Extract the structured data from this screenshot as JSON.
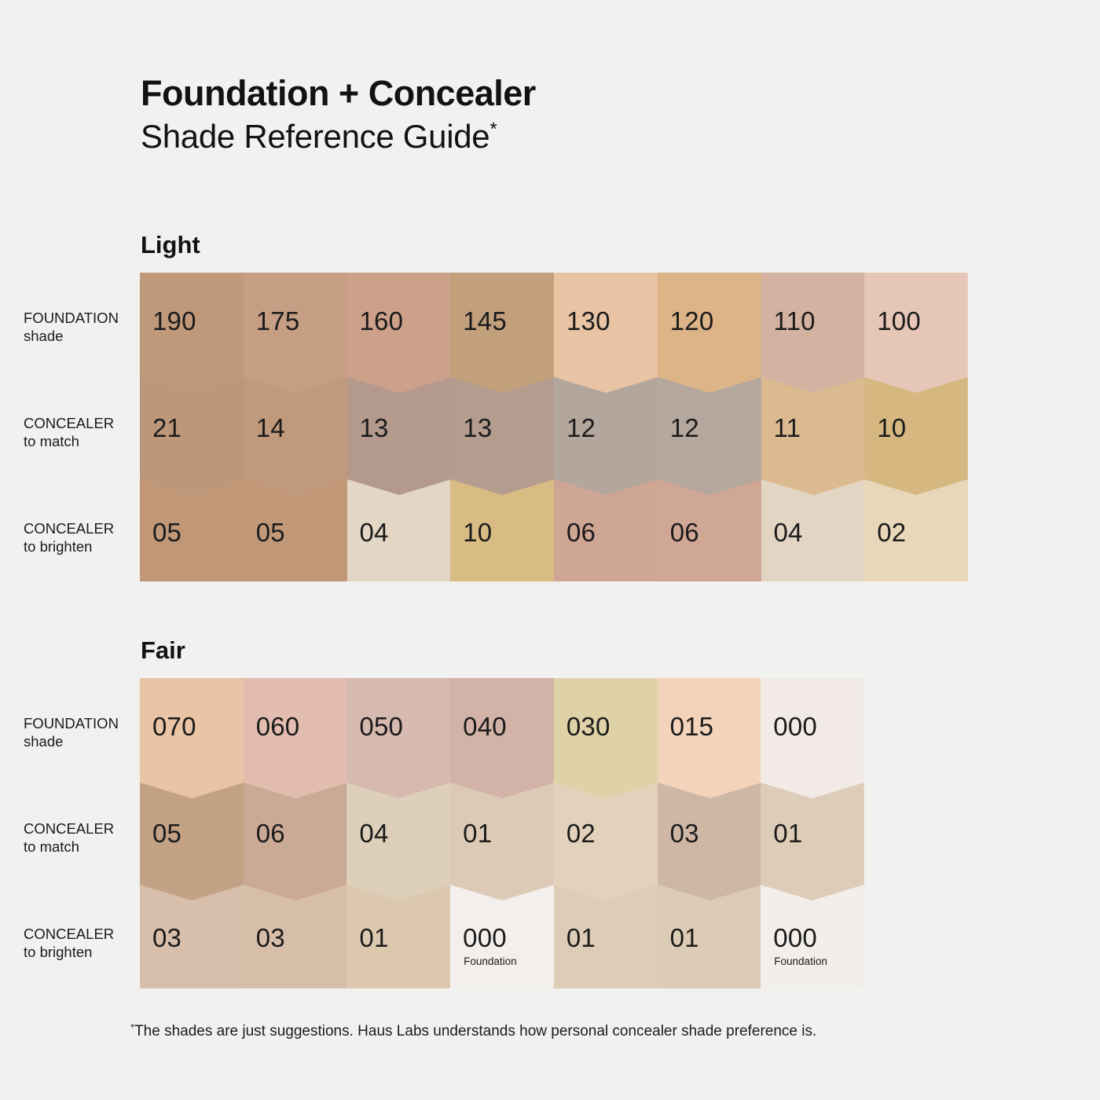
{
  "background": "#f1f1ef",
  "title": {
    "line1": "Foundation + Concealer",
    "line2": "Shade Reference Guide",
    "note_mark": "*"
  },
  "row_labels": [
    {
      "line1": "FOUNDATION",
      "line2": "shade"
    },
    {
      "line1": "CONCEALER",
      "line2": "to match"
    },
    {
      "line1": "CONCEALER",
      "line2": "to brighten"
    }
  ],
  "sections": [
    {
      "name": "Light",
      "columns": [
        {
          "foundation": {
            "label": "190",
            "color": "#c0987a"
          },
          "match": {
            "label": "21",
            "color": "#bd9779"
          },
          "brighten": {
            "label": "05",
            "color": "#c09878"
          }
        },
        {
          "foundation": {
            "label": "175",
            "color": "#c59e83"
          },
          "match": {
            "label": "14",
            "color": "#c19a7e"
          },
          "brighten": {
            "label": "05",
            "color": "#c19979"
          }
        },
        {
          "foundation": {
            "label": "160",
            "color": "#cda089"
          },
          "match": {
            "label": "13",
            "color": "#b39a8d"
          },
          "brighten": {
            "label": "04",
            "color": "#e4d6c4"
          }
        },
        {
          "foundation": {
            "label": "145",
            "color": "#c2a07c"
          },
          "match": {
            "label": "13",
            "color": "#b49c8f"
          },
          "brighten": {
            "label": "10",
            "color": "#d9bc83"
          }
        },
        {
          "foundation": {
            "label": "130",
            "color": "#e8c4a4"
          },
          "match": {
            "label": "12",
            "color": "#b3a69d"
          },
          "brighten": {
            "label": "06",
            "color": "#cfa593"
          }
        },
        {
          "foundation": {
            "label": "120",
            "color": "#dcb487"
          },
          "match": {
            "label": "12",
            "color": "#b4a79e"
          },
          "brighten": {
            "label": "06",
            "color": "#d0a694"
          }
        },
        {
          "foundation": {
            "label": "110",
            "color": "#d3b2a2"
          },
          "match": {
            "label": "11",
            "color": "#dcba8f"
          },
          "brighten": {
            "label": "04",
            "color": "#e3d5c3"
          }
        },
        {
          "foundation": {
            "label": "100",
            "color": "#e6c6b7"
          },
          "match": {
            "label": "10",
            "color": "#d6b780"
          },
          "brighten": {
            "label": "02",
            "color": "#e7d8ba"
          }
        }
      ]
    },
    {
      "name": "Fair",
      "columns": [
        {
          "foundation": {
            "label": "070",
            "color": "#eac5a5"
          },
          "match": {
            "label": "05",
            "color": "#c2a184"
          },
          "brighten": {
            "label": "03",
            "color": "#d8bfab"
          }
        },
        {
          "foundation": {
            "label": "060",
            "color": "#e2bcae"
          },
          "match": {
            "label": "06",
            "color": "#cbaa95"
          },
          "brighten": {
            "label": "03",
            "color": "#d7bea9"
          }
        },
        {
          "foundation": {
            "label": "050",
            "color": "#d6b9af"
          },
          "match": {
            "label": "04",
            "color": "#ddcfba"
          },
          "brighten": {
            "label": "01",
            "color": "#dbc8ae"
          }
        },
        {
          "foundation": {
            "label": "040",
            "color": "#d3b2a8"
          },
          "match": {
            "label": "01",
            "color": "#dccab6"
          },
          "brighten": {
            "label": "000",
            "color": "#f3efec",
            "sublabel": "Foundation"
          }
        },
        {
          "foundation": {
            "label": "030",
            "color": "#ded2a6"
          },
          "match": {
            "label": "02",
            "color": "#e2d2bc"
          },
          "brighten": {
            "label": "01",
            "color": "#decdb6"
          }
        },
        {
          "foundation": {
            "label": "015",
            "color": "#f3d3ba"
          },
          "match": {
            "label": "03",
            "color": "#cfb7a6"
          },
          "brighten": {
            "label": "01",
            "color": "#ddccb5"
          }
        },
        {
          "foundation": {
            "label": "000",
            "color": "#f1eae6"
          },
          "match": {
            "label": "01",
            "color": "#ddccb8"
          },
          "brighten": {
            "label": "000",
            "color": "#f2eeea",
            "sublabel": "Foundation"
          }
        }
      ]
    }
  ],
  "footnote": {
    "mark": "*",
    "text": "The shades are just suggestions. Haus Labs understands how personal concealer shade preference is."
  }
}
